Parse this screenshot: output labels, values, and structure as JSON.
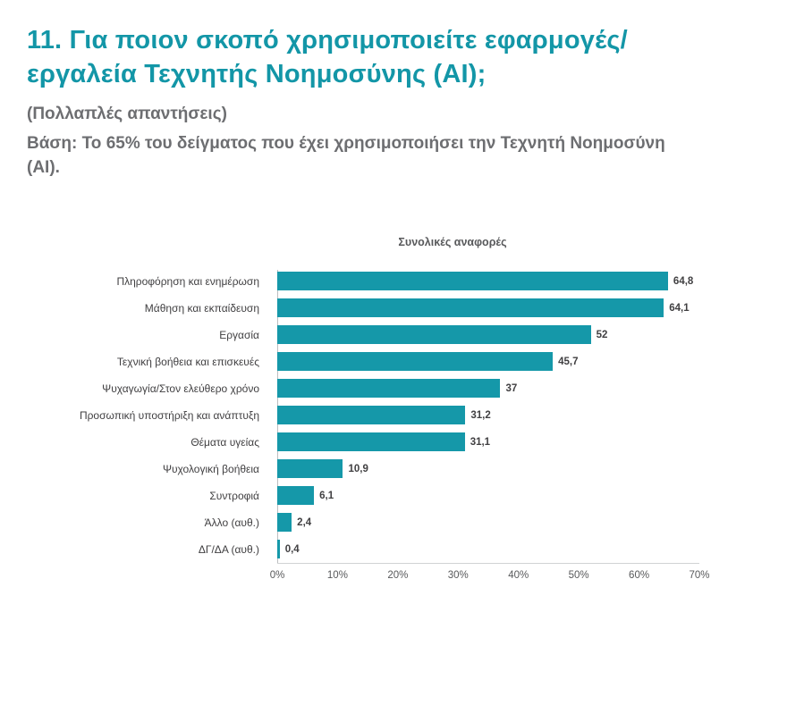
{
  "header": {
    "title_lines": [
      "11. Για ποιον σκοπό χρησιμοποιείτε εφαρμογές/",
      "εργαλεία Τεχνητής Νοημοσύνης (AI);"
    ],
    "note": "(Πολλαπλές απαντήσεις)",
    "base": "Βάση: Το 65% του δείγματος που έχει χρησιμοποιήσει την Τεχνητή Νοημοσύνη (AI)."
  },
  "colors": {
    "accent": "#1396a7",
    "bar": "#1598a9"
  },
  "chart_data": {
    "type": "bar",
    "orientation": "horizontal",
    "title": "Συνολικές αναφορές",
    "categories": [
      "Πληροφόρηση και ενημέρωση",
      "Μάθηση και εκπαίδευση",
      "Εργασία",
      "Τεχνική βοήθεια και επισκευές",
      "Ψυχαγωγία/Στον ελεύθερο χρόνο",
      "Προσωπική υποστήριξη και ανάπτυξη",
      "Θέματα υγείας",
      "Ψυχολογική βοήθεια",
      "Συντροφιά",
      "Άλλο (αυθ.)",
      "ΔΓ/ΔΑ (αυθ.)"
    ],
    "values": [
      64.8,
      64.1,
      52,
      45.7,
      37,
      31.2,
      31.1,
      10.9,
      6.1,
      2.4,
      0.4
    ],
    "value_labels": [
      "64,8",
      "64,1",
      "52",
      "45,7",
      "37",
      "31,2",
      "31,1",
      "10,9",
      "6,1",
      "2,4",
      "0,4"
    ],
    "xlabel": "",
    "ylabel": "",
    "xlim": [
      0,
      70
    ],
    "x_ticks": [
      "0%",
      "10%",
      "20%",
      "30%",
      "40%",
      "50%",
      "60%",
      "70%"
    ],
    "grid": false,
    "legend": false,
    "bar_color": "#1598a9"
  }
}
